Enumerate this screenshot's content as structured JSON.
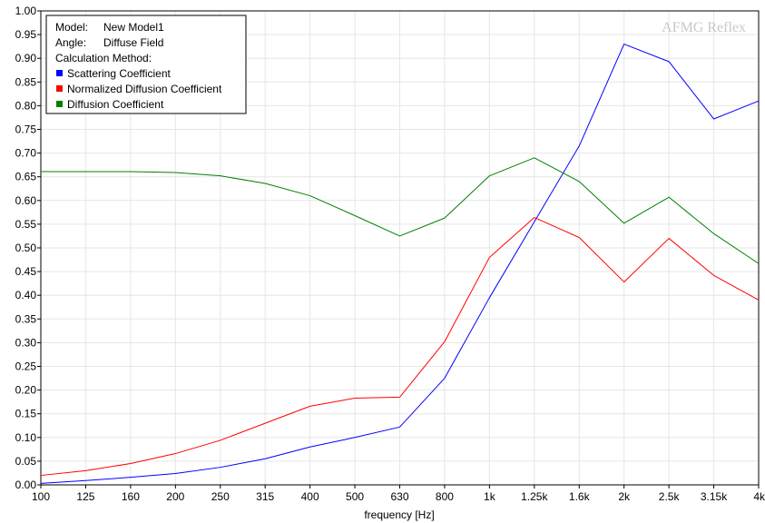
{
  "watermark": "AFMG Reflex",
  "legend": {
    "model_label": "Model:",
    "model_value": "New Model1",
    "angle_label": "Angle:",
    "angle_value": "Diffuse Field",
    "method_label": "Calculation Method:"
  },
  "chart_data": {
    "type": "line",
    "xlabel": "frequency [Hz]",
    "ylabel": "",
    "ylim": [
      0,
      1
    ],
    "grid": true,
    "legend_position": "top-left",
    "categories": [
      "100",
      "125",
      "160",
      "200",
      "250",
      "315",
      "400",
      "500",
      "630",
      "800",
      "1k",
      "1.25k",
      "1.6k",
      "2k",
      "2.5k",
      "3.15k",
      "4k"
    ],
    "y_ticks": [
      "0.00",
      "0.05",
      "0.10",
      "0.15",
      "0.20",
      "0.25",
      "0.30",
      "0.35",
      "0.40",
      "0.45",
      "0.50",
      "0.55",
      "0.60",
      "0.65",
      "0.70",
      "0.75",
      "0.80",
      "0.85",
      "0.90",
      "0.95",
      "1.00"
    ],
    "series": [
      {
        "name": "Scattering Coefficient",
        "color": "#0000ff",
        "values": [
          0.003,
          0.009,
          0.016,
          0.024,
          0.037,
          0.055,
          0.08,
          0.1,
          0.122,
          0.225,
          0.395,
          0.555,
          0.715,
          0.93,
          0.893,
          0.772,
          0.81
        ]
      },
      {
        "name": "Normalized Diffusion Coefficient",
        "color": "#ff0000",
        "values": [
          0.02,
          0.03,
          0.045,
          0.066,
          0.094,
          0.13,
          0.166,
          0.183,
          0.185,
          0.302,
          0.48,
          0.564,
          0.522,
          0.428,
          0.52,
          0.442,
          0.39
        ]
      },
      {
        "name": "Diffusion Coefficient",
        "color": "#008000",
        "values": [
          0.661,
          0.661,
          0.661,
          0.659,
          0.652,
          0.636,
          0.61,
          0.568,
          0.525,
          0.563,
          0.652,
          0.69,
          0.64,
          0.552,
          0.607,
          0.53,
          0.467
        ]
      }
    ]
  }
}
